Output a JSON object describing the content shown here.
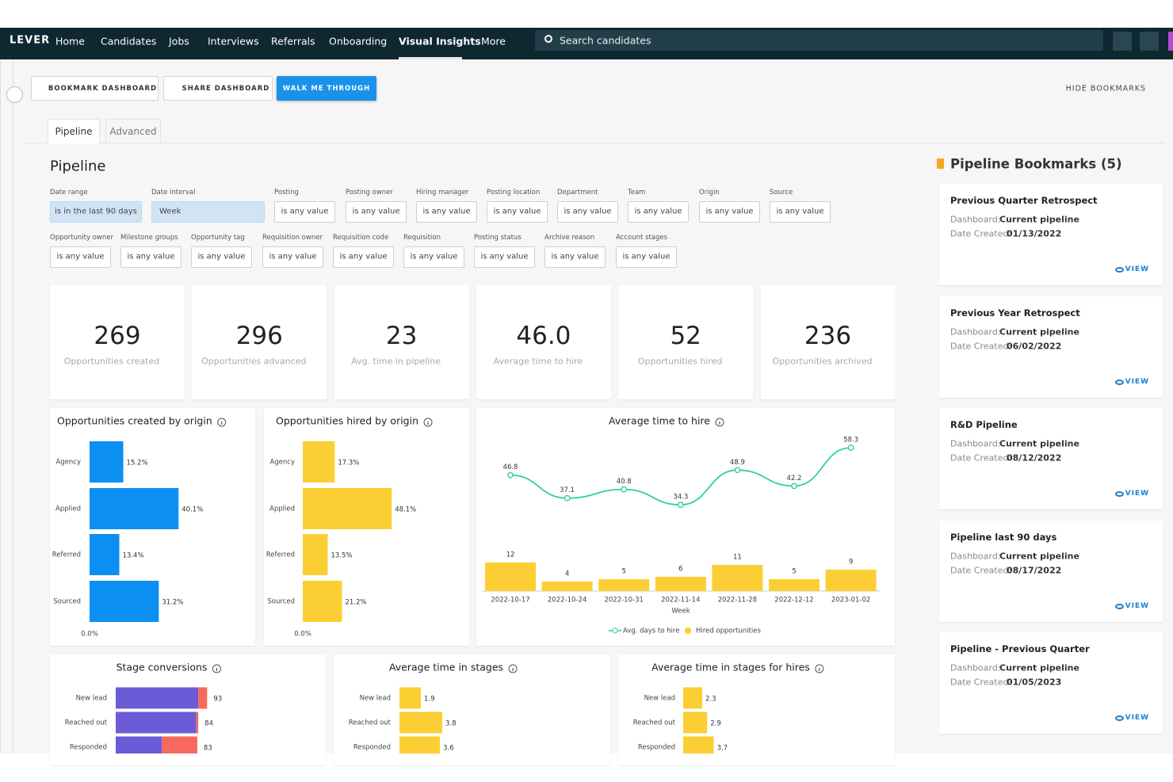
{
  "nav": {
    "logo": "LEVER",
    "items": [
      "Home",
      "Candidates",
      "Jobs",
      "Interviews",
      "Referrals",
      "Onboarding",
      "Visual Insights",
      "More"
    ],
    "active": 6,
    "search": "Search candidates"
  },
  "toolbar": {
    "buttons": [
      "BOOKMARK DASHBOARD",
      "SHARE DASHBOARD",
      "WALK ME THROUGH"
    ],
    "hide": "HIDE BOOKMARKS"
  },
  "tabs": [
    "Pipeline",
    "Advanced"
  ],
  "dashboard": {
    "title": "Pipeline",
    "filters": [
      [
        {
          "label": "Date range",
          "value": "is in the last 90 days"
        },
        {
          "label": "Date interval",
          "value": "Week"
        },
        {
          "label": "Posting",
          "value": "is any value"
        },
        {
          "label": "Posting owner",
          "value": "is any value"
        },
        {
          "label": "Hiring manager",
          "value": "is any value"
        },
        {
          "label": "Posting location",
          "value": "is any value"
        },
        {
          "label": "Department",
          "value": "is any value"
        },
        {
          "label": "Team",
          "value": "is any value"
        },
        {
          "label": "Origin",
          "value": "is any value"
        },
        {
          "label": "Source",
          "value": "is any value"
        }
      ],
      [
        {
          "label": "Opportunity owner",
          "value": "is any value"
        },
        {
          "label": "Milestone groups",
          "value": "is any value"
        },
        {
          "label": "Opportunity tag",
          "value": "is any value"
        },
        {
          "label": "Requisition owner",
          "value": "is any value"
        },
        {
          "label": "Requisition code",
          "value": "is any value"
        },
        {
          "label": "Requisition",
          "value": "is any value"
        },
        {
          "label": "Posting status",
          "value": "is any value"
        },
        {
          "label": "Archive reason",
          "value": "is any value"
        },
        {
          "label": "Account stages",
          "value": "is any value"
        }
      ]
    ],
    "kpis": [
      {
        "value": 269,
        "label": "Opportunities created"
      },
      {
        "value": 296,
        "label": "Opportunities advanced"
      },
      {
        "value": 23,
        "label": "Avg. time in pipeline"
      },
      {
        "value": "46.0",
        "label": "Average time to hire"
      },
      {
        "value": 52,
        "label": "Opportunities hired"
      },
      {
        "value": 236,
        "label": "Opportunities archived"
      }
    ],
    "charts": [
      {
        "type": "bar",
        "title": "Opportunities created by origin",
        "categories": [
          "Agency",
          "Applied",
          "Referred",
          "Sourced"
        ],
        "values": [
          15.2,
          40.1,
          13.4,
          31.2
        ],
        "value_labels": [
          "15.2%",
          "40.1%",
          "13.4%",
          "31.2%"
        ],
        "color": "#0b8ff2",
        "xlim": [
          0,
          50
        ],
        "xticks": [
          {
            "value": 0,
            "label": "0.0%"
          }
        ]
      },
      {
        "type": "bar",
        "title": "Opportunities hired by origin",
        "categories": [
          "Agency",
          "Applied",
          "Referred",
          "Sourced"
        ],
        "values": [
          17.3,
          48.1,
          13.5,
          21.2
        ],
        "value_labels": [
          "17.3%",
          "48.1%",
          "13.5%",
          "21.2%"
        ],
        "color": "#fbcf34",
        "xlim": [
          0,
          60
        ],
        "xticks": [
          {
            "value": 0,
            "label": "0.0%"
          }
        ]
      },
      {
        "type": "combo",
        "title": "Average time to hire",
        "x_label": "Week",
        "categories": [
          "2022-10-17",
          "2022-10-24",
          "2022-10-31",
          "2022-11-14",
          "2022-11-28",
          "2022-12-12",
          "2023-01-02"
        ],
        "series": [
          {
            "name": "Avg. days to hire",
            "type": "line",
            "color": "#2fcfa5",
            "values": [
              46.8,
              37.1,
              40.8,
              34.3,
              48.9,
              42.2,
              58.3
            ]
          },
          {
            "name": "Hired opportunities",
            "type": "bar",
            "axis": "y2",
            "color": "#fbcf34",
            "values": [
              12,
              4,
              5,
              6,
              11,
              5,
              9
            ]
          }
        ],
        "ylim": [
          30,
          60
        ],
        "y2lim": [
          0,
          40
        ]
      },
      {
        "type": "stacked_bar",
        "title": "Stage conversions",
        "categories": [
          "New lead",
          "Reached out",
          "Responded"
        ],
        "series": [
          {
            "color": "#6c5bd6",
            "values": [
              84,
              82,
              47
            ]
          },
          {
            "color": "#f8695d",
            "values": [
              9,
              2,
              36
            ]
          }
        ],
        "totals": [
          93,
          84,
          83
        ],
        "xlim": [
          0,
          100
        ]
      },
      {
        "type": "bar",
        "title": "Average time in stages",
        "categories": [
          "New lead",
          "Reached out",
          "Responded"
        ],
        "values": [
          1.9,
          3.8,
          3.6
        ],
        "color": "#fbcf34",
        "xlim": [
          0,
          10
        ]
      },
      {
        "type": "bar",
        "title": "Average time in stages for hires",
        "categories": [
          "New lead",
          "Reached out",
          "Responded"
        ],
        "values": [
          2.3,
          2.9,
          3.7
        ],
        "color": "#fbcf34",
        "xlim": [
          0,
          14
        ]
      }
    ]
  },
  "bookmarks": {
    "title": "Pipeline Bookmarks (5)",
    "items": [
      {
        "name": "Previous Quarter Retrospect",
        "dashboard_label": "Dashboard:",
        "dashboard": "Current pipeline",
        "date_label": "Date Created:",
        "date": "01/13/2022",
        "action": "VIEW"
      },
      {
        "name": "Previous Year Retrospect",
        "dashboard_label": "Dashboard:",
        "dashboard": "Current pipeline",
        "date_label": "Date Created:",
        "date": "06/02/2022",
        "action": "VIEW"
      },
      {
        "name": "R&D Pipeline",
        "dashboard_label": "Dashboard:",
        "dashboard": "Current pipeline",
        "date_label": "Date Created:",
        "date": "08/12/2022",
        "action": "VIEW"
      },
      {
        "name": "Pipeline last 90 days",
        "dashboard_label": "Dashboard:",
        "dashboard": "Current pipeline",
        "date_label": "Date Created:",
        "date": "08/17/2022",
        "action": "VIEW"
      },
      {
        "name": "Pipeline - Previous Quarter",
        "dashboard_label": "Dashboard:",
        "dashboard": "Current pipeline",
        "date_label": "Date Created:",
        "date": "01/05/2023",
        "action": "VIEW"
      }
    ]
  }
}
